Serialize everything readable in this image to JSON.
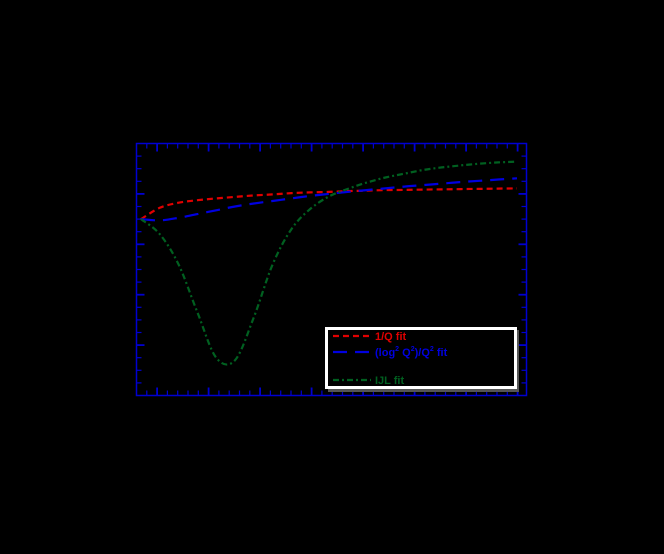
{
  "chart_data": {
    "type": "line",
    "title": "",
    "xlabel": "",
    "ylabel": "",
    "grid": false,
    "background": "#000000",
    "frame_color": "#0000d0",
    "legend_position": "lower right",
    "x_normalized": [
      0.0,
      0.05,
      0.1,
      0.15,
      0.2,
      0.25,
      0.3,
      0.35,
      0.4,
      0.45,
      0.5,
      0.55,
      0.6,
      0.65,
      0.7,
      0.75,
      0.8,
      0.85,
      0.9,
      0.95,
      1.0
    ],
    "series": [
      {
        "name": "1/Q fit",
        "label": "1/Q fit",
        "color": "#e00000",
        "dash": "6,4",
        "values": [
          0.7,
          0.745,
          0.765,
          0.775,
          0.782,
          0.788,
          0.794,
          0.798,
          0.803,
          0.806,
          0.808,
          0.811,
          0.813,
          0.815,
          0.816,
          0.817,
          0.818,
          0.819,
          0.82,
          0.821,
          0.822
        ]
      },
      {
        "name": "(log² Q²)/Q² fit",
        "label_main": "(log",
        "label_sup1": "2",
        "label_mid": " Q",
        "label_sup2": "2",
        "label_end": ")/Q",
        "label_sup3": "2",
        "label_tail": " fit",
        "color": "#0000e0",
        "dash": "14,8",
        "values": [
          0.7,
          0.695,
          0.705,
          0.72,
          0.735,
          0.75,
          0.762,
          0.772,
          0.782,
          0.792,
          0.8,
          0.808,
          0.815,
          0.822,
          0.829,
          0.835,
          0.841,
          0.847,
          0.852,
          0.857,
          0.862
        ]
      },
      {
        "name": "IJL fit",
        "label": "IJL fit",
        "color": "#006020",
        "dash": "6,3,2,3",
        "values": [
          0.7,
          0.64,
          0.52,
          0.33,
          0.15,
          0.14,
          0.31,
          0.52,
          0.66,
          0.74,
          0.79,
          0.82,
          0.845,
          0.865,
          0.88,
          0.895,
          0.905,
          0.913,
          0.92,
          0.925,
          0.928
        ]
      }
    ],
    "xlim": [
      0,
      1
    ],
    "ylim": [
      0,
      1
    ]
  }
}
